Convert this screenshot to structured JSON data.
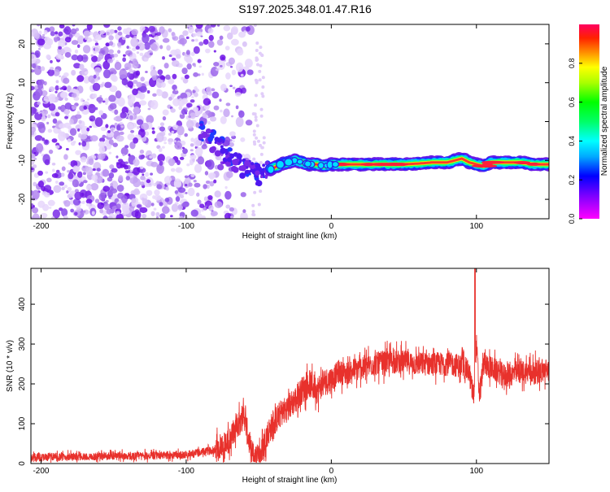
{
  "title": "S197.2025.348.01.47.R16",
  "chart_data": [
    {
      "type": "heatmap",
      "panel": "spectrogram",
      "title": "S197.2025.348.01.47.R16",
      "xlabel": "Height of straight line (km)",
      "ylabel": "Frequency (Hz)",
      "xlim": [
        -207,
        150
      ],
      "ylim": [
        -25,
        25
      ],
      "xticks": [
        -200,
        -100,
        0,
        100
      ],
      "yticks": [
        -20,
        -10,
        0,
        10,
        20
      ],
      "colorbar": {
        "label": "Normalized spectral amplitude",
        "range": [
          0,
          1
        ],
        "ticks": [
          0.0,
          0.2,
          0.4,
          0.6,
          0.8
        ]
      },
      "noise_region_x": [
        -207,
        -50
      ],
      "signal_track": {
        "x": [
          -92,
          -85,
          -78,
          -72,
          -66,
          -60,
          -55,
          -50,
          -45,
          -40,
          -35,
          -30,
          -25,
          -20,
          -15,
          -10,
          -5,
          0,
          10,
          20,
          30,
          40,
          50,
          60,
          70,
          80,
          85,
          90,
          95,
          100,
          105,
          110,
          120,
          130,
          140,
          150
        ],
        "freq": [
          -2,
          -4,
          -6,
          -8,
          -10,
          -12,
          -13,
          -14,
          -13,
          -12,
          -11,
          -10.5,
          -10,
          -10.5,
          -11,
          -11,
          -11.5,
          -11,
          -11,
          -11,
          -11,
          -11,
          -11,
          -10.8,
          -10.5,
          -10.5,
          -10,
          -9.5,
          -10.5,
          -11,
          -11.5,
          -10.5,
          -10.5,
          -10.5,
          -11,
          -11
        ]
      }
    },
    {
      "type": "line",
      "panel": "snr",
      "xlabel": "Height of straight line (km)",
      "ylabel": "SNR (10 * v/v)",
      "xlim": [
        -207,
        150
      ],
      "ylim": [
        0,
        490
      ],
      "xticks": [
        -200,
        -100,
        0,
        100
      ],
      "yticks": [
        0,
        100,
        200,
        300,
        400
      ],
      "series": [
        {
          "name": "SNR",
          "color": "#e8312c",
          "x": [
            -207,
            -180,
            -150,
            -120,
            -100,
            -90,
            -80,
            -70,
            -65,
            -60,
            -57,
            -55,
            -52,
            -50,
            -48,
            -45,
            -40,
            -35,
            -30,
            -25,
            -20,
            -15,
            -10,
            -5,
            0,
            5,
            10,
            15,
            20,
            30,
            40,
            50,
            60,
            70,
            80,
            90,
            95,
            98,
            100,
            102,
            105,
            110,
            120,
            130,
            140,
            150
          ],
          "values": [
            15,
            17,
            18,
            20,
            22,
            28,
            35,
            55,
            100,
            120,
            60,
            25,
            15,
            18,
            30,
            70,
            100,
            125,
            140,
            160,
            185,
            200,
            185,
            205,
            210,
            230,
            225,
            235,
            240,
            250,
            255,
            255,
            250,
            250,
            250,
            245,
            230,
            160,
            300,
            175,
            250,
            240,
            220,
            230,
            230,
            235
          ]
        }
      ]
    }
  ]
}
